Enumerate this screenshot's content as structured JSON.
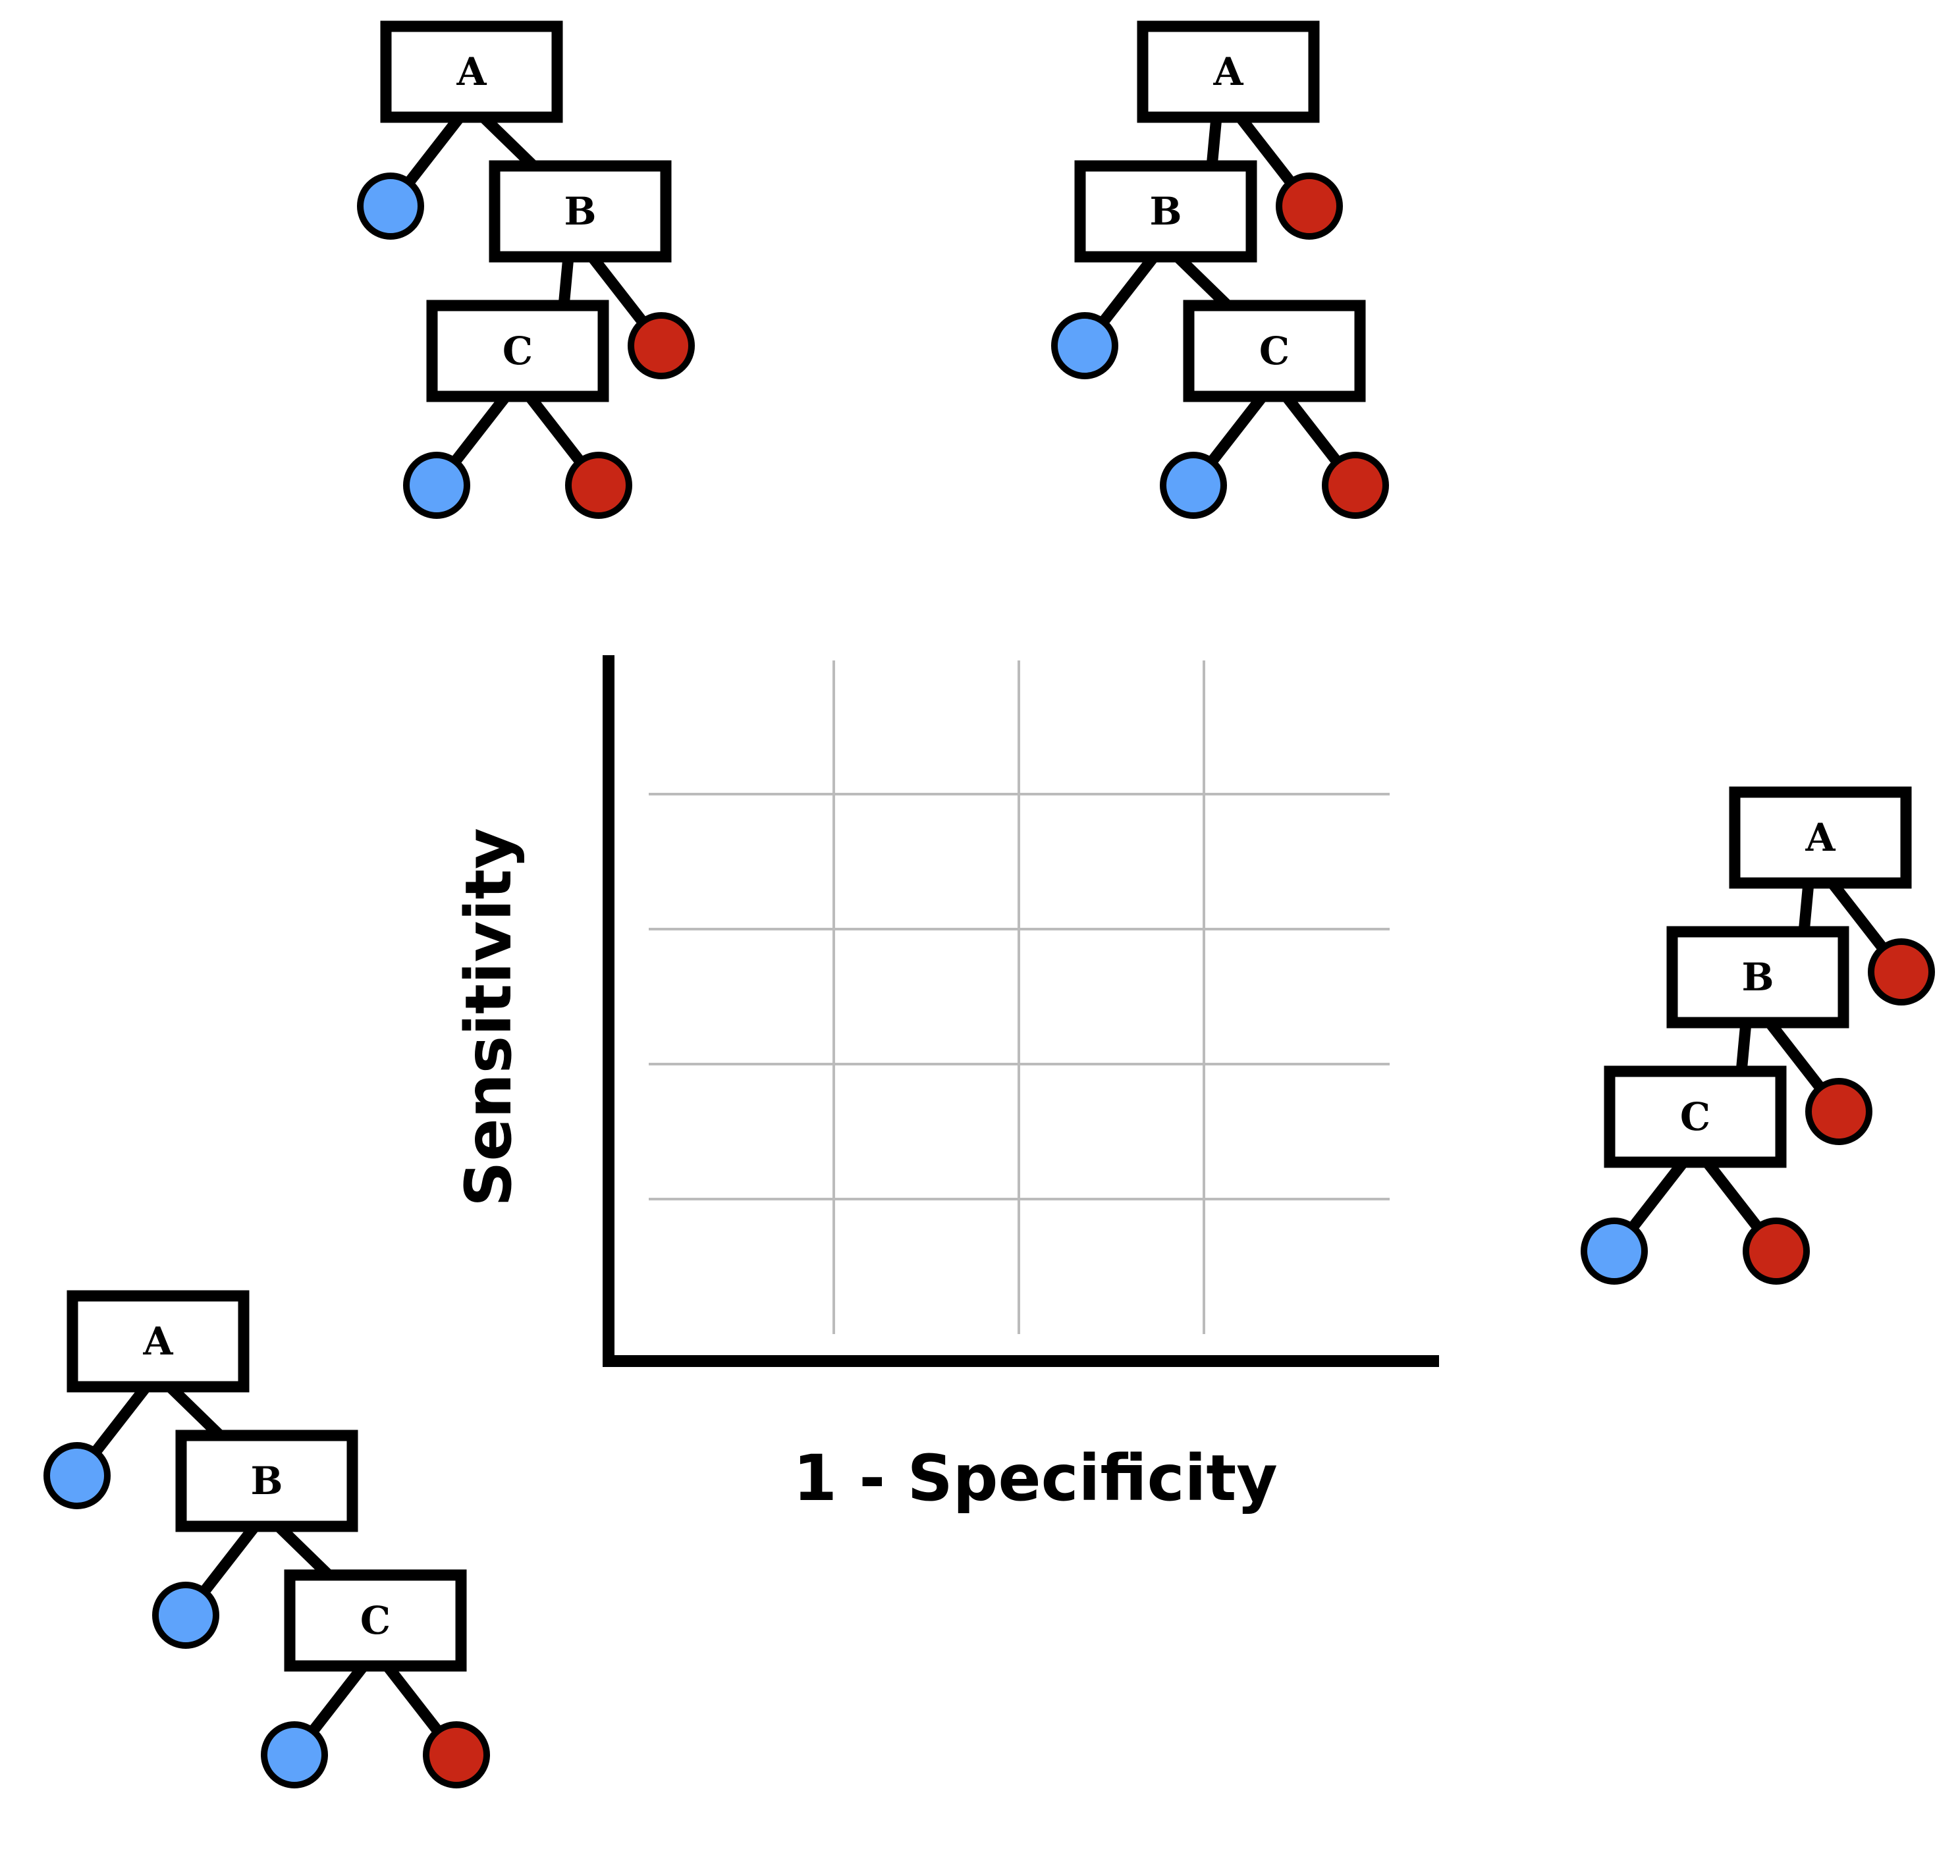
{
  "colors": {
    "leaf_blue": "#5ea3fb",
    "leaf_red": "#c82615",
    "stroke": "#000000",
    "grid": "#bbbbbb",
    "background": "#ffffff"
  },
  "axes": {
    "x_label": "1 - Specificity",
    "y_label": "Sensitivity",
    "grid": true,
    "vertical_gridlines": 3,
    "horizontal_gridlines": 4
  },
  "trees": [
    {
      "position": "top-left",
      "nodes": [
        {
          "label": "A",
          "left": "leaf-blue",
          "right": "B"
        },
        {
          "label": "B",
          "left": "C",
          "right": "leaf-red"
        },
        {
          "label": "C",
          "left": "leaf-blue",
          "right": "leaf-red"
        }
      ]
    },
    {
      "position": "top-right",
      "nodes": [
        {
          "label": "A",
          "left": "B",
          "right": "leaf-red"
        },
        {
          "label": "B",
          "left": "leaf-blue",
          "right": "C"
        },
        {
          "label": "C",
          "left": "leaf-blue",
          "right": "leaf-red"
        }
      ]
    },
    {
      "position": "right",
      "nodes": [
        {
          "label": "A",
          "left": "B",
          "right": "leaf-red"
        },
        {
          "label": "B",
          "left": "C",
          "right": "leaf-red"
        },
        {
          "label": "C",
          "left": "leaf-blue",
          "right": "leaf-red"
        }
      ]
    },
    {
      "position": "bottom-left",
      "nodes": [
        {
          "label": "A",
          "left": "leaf-blue",
          "right": "B"
        },
        {
          "label": "B",
          "left": "leaf-blue",
          "right": "C"
        },
        {
          "label": "C",
          "left": "leaf-blue",
          "right": "leaf-red"
        }
      ]
    }
  ]
}
